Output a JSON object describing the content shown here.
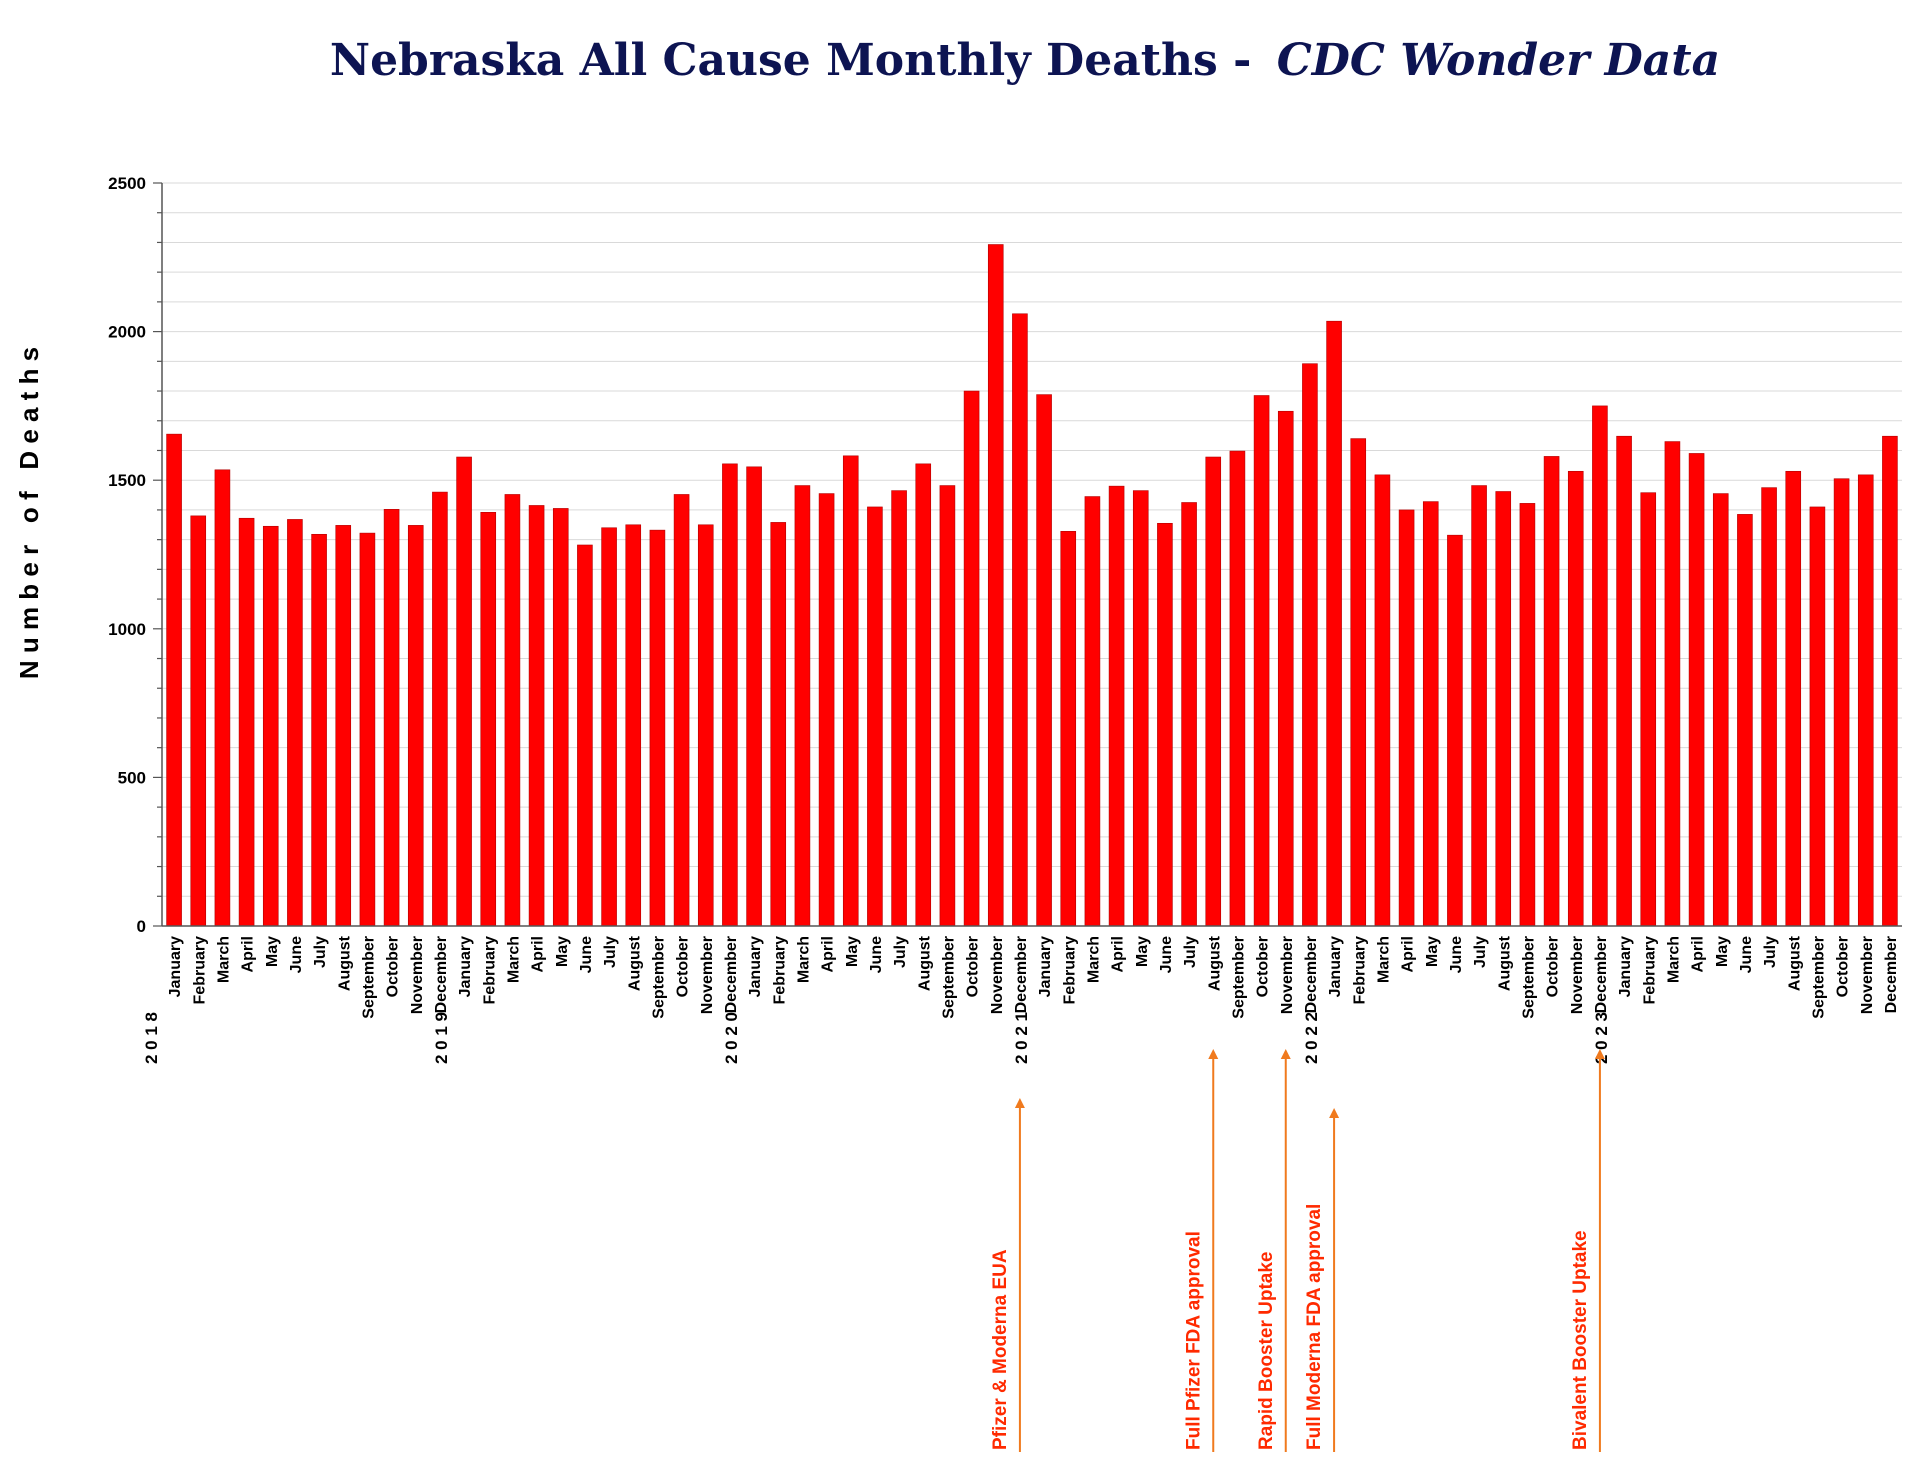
{
  "colors": {
    "title": "#0d1452",
    "bar": "#ff0000",
    "bar_stroke": "#b30000",
    "axis": "#555555",
    "grid": "#d9d9d9",
    "tick_text": "#000000",
    "annotation_text": "#ff2a00",
    "annotation_arrow": "#f07a1e"
  },
  "chart_data": {
    "type": "bar",
    "title": "Nebraska All Cause Monthly Deaths -",
    "subtitle": "CDC Wonder Data",
    "ylabel": "N u m b e r   o f   D e a t h s",
    "xlabel": "",
    "ylim": [
      0,
      2500
    ],
    "yticks": [
      "0",
      "500",
      "1000",
      "1500",
      "2000",
      "2500"
    ],
    "grid": true,
    "years": [
      {
        "label": "2 0 1 8",
        "start_index": 0
      },
      {
        "label": "2 0 1 9",
        "start_index": 12
      },
      {
        "label": "2 0 2 0",
        "start_index": 24
      },
      {
        "label": "2 0 2 1",
        "start_index": 36
      },
      {
        "label": "2 0 2 2",
        "start_index": 48
      },
      {
        "label": "2 0 2 3",
        "start_index": 60
      }
    ],
    "categories": [
      "January",
      "February",
      "March",
      "April",
      "May",
      "June",
      "July",
      "August",
      "September",
      "October",
      "November",
      "December",
      "January",
      "February",
      "March",
      "April",
      "May",
      "June",
      "July",
      "August",
      "September",
      "October",
      "November",
      "December",
      "January",
      "February",
      "March",
      "April",
      "May",
      "June",
      "July",
      "August",
      "September",
      "October",
      "November",
      "December",
      "January",
      "February",
      "March",
      "April",
      "May",
      "June",
      "July",
      "August",
      "September",
      "October",
      "November",
      "December",
      "January",
      "February",
      "March",
      "April",
      "May",
      "June",
      "July",
      "August",
      "September",
      "October",
      "November",
      "December",
      "January",
      "February",
      "March",
      "April",
      "May",
      "June",
      "July",
      "August",
      "September",
      "October",
      "November",
      "December"
    ],
    "values": [
      1655,
      1380,
      1535,
      1372,
      1345,
      1368,
      1318,
      1348,
      1322,
      1402,
      1348,
      1460,
      1578,
      1392,
      1452,
      1415,
      1405,
      1282,
      1340,
      1350,
      1332,
      1452,
      1350,
      1555,
      1545,
      1358,
      1482,
      1455,
      1582,
      1410,
      1465,
      1555,
      1482,
      1800,
      2293,
      2060,
      1788,
      1328,
      1445,
      1480,
      1465,
      1355,
      1425,
      1578,
      1598,
      1785,
      1732,
      1892,
      2035,
      1640,
      1518,
      1400,
      1428,
      1315,
      1482,
      1462,
      1422,
      1580,
      1530,
      1750,
      1648,
      1458,
      1630,
      1590,
      1455,
      1385,
      1475,
      1530,
      1410,
      1505,
      1518,
      1648
    ],
    "annotations": [
      {
        "label": "Pfizer & Moderna EUA",
        "index": 35
      },
      {
        "label": "Full Pfizer FDA approval",
        "index": 43
      },
      {
        "label": "Rapid Booster Uptake",
        "index": 46
      },
      {
        "label": "Full Moderna FDA approval",
        "index": 48
      },
      {
        "label": "Bivalent Booster Uptake",
        "index": 59
      }
    ]
  }
}
